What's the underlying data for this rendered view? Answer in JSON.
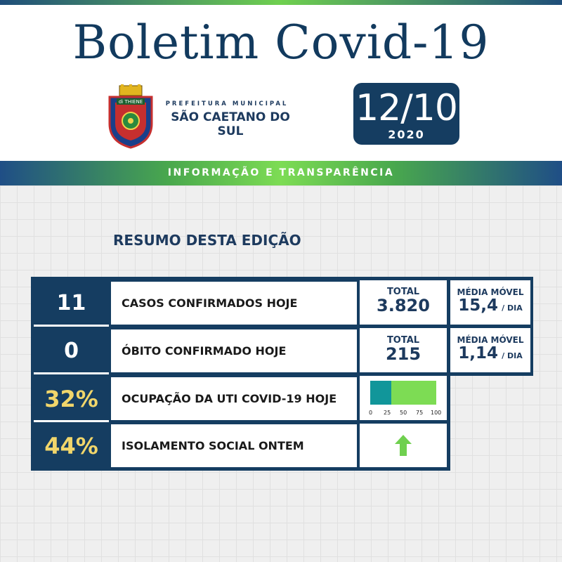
{
  "header": {
    "title": "Boletim Covid-19",
    "prefeitura_small": "PREFEITURA MUNICIPAL",
    "prefeitura_big": "SÃO CAETANO DO SUL",
    "crest_text": "di THIENE",
    "date_day": "12/10",
    "date_year": "2020"
  },
  "banner": {
    "text": "INFORMAÇÃO E TRANSPARÊNCIA"
  },
  "section_title": "RESUMO DESTA EDIÇÃO",
  "rows": [
    {
      "value": "11",
      "label": "CASOS CONFIRMADOS HOJE",
      "total_label": "TOTAL",
      "total_value": "3.820",
      "avg_label": "MÉDIA MÓVEL",
      "avg_value": "15,4",
      "avg_unit": "/ DIA"
    },
    {
      "value": "0",
      "label": "ÓBITO CONFIRMADO HOJE",
      "total_label": "TOTAL",
      "total_value": "215",
      "avg_label": "MÉDIA MÓVEL",
      "avg_value": "1,14",
      "avg_unit": "/ DIA"
    },
    {
      "value": "32%",
      "label": "OCUPAÇÃO DA UTI COVID-19 HOJE",
      "gauge_percent": 32,
      "gauge_ticks": [
        "0",
        "25",
        "50",
        "75",
        "100"
      ]
    },
    {
      "value": "44%",
      "label": "ISOLAMENTO SOCIAL ONTEM",
      "trend": "up-arrow-icon"
    }
  ],
  "colors": {
    "navy": "#153d61",
    "green": "#7ddc54",
    "teal": "#11969a",
    "yellow": "#f1d66b"
  }
}
